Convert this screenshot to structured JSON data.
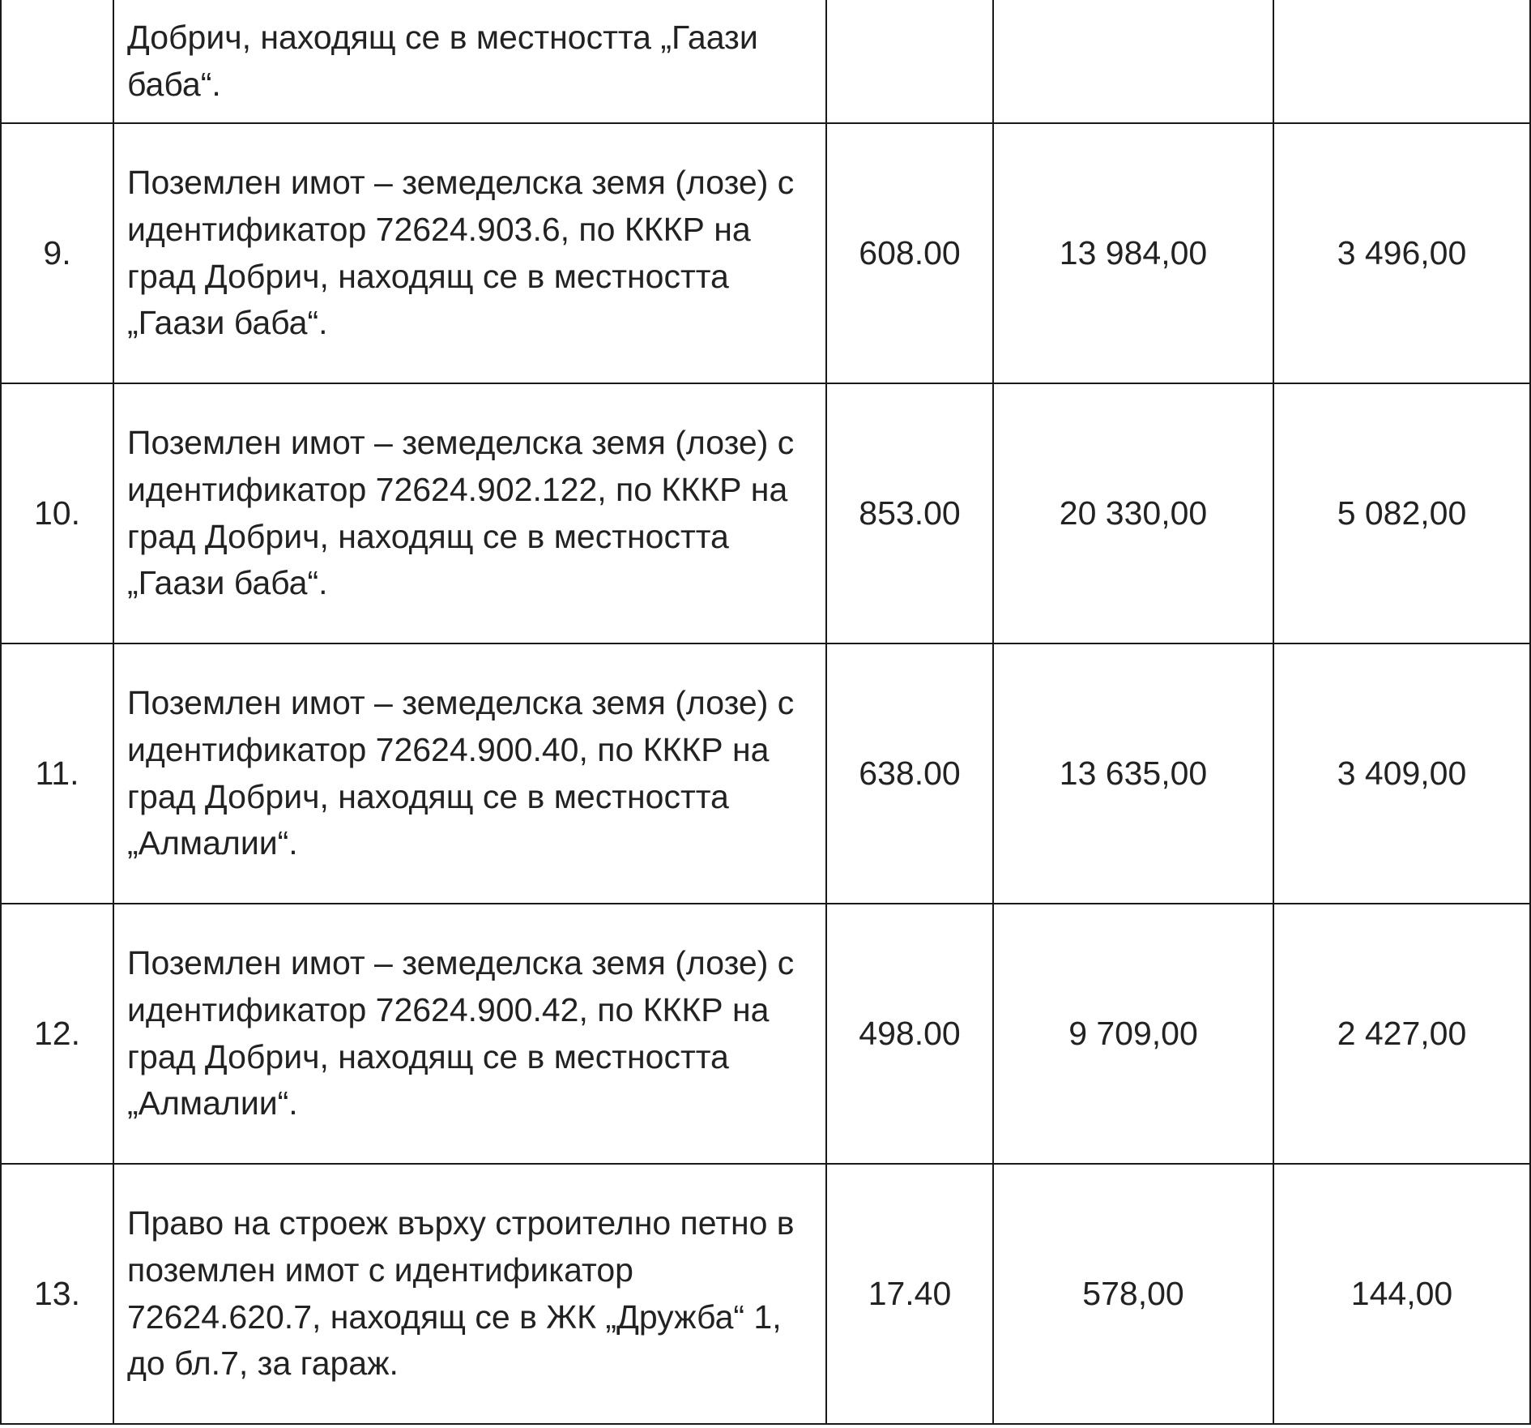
{
  "rows": [
    {
      "no": "",
      "desc": "Добрич, находящ се в местността „Гаази баба“.",
      "area": "",
      "value1": "",
      "value2": ""
    },
    {
      "no": "9.",
      "desc": "Поземлен имот – земеделска земя (лозе) с идентификатор 72624.903.6, по КККР на град Добрич, находящ се в местността „Гаази баба“.",
      "area": "608.00",
      "value1": "13 984,00",
      "value2": "3 496,00"
    },
    {
      "no": "10.",
      "desc": "Поземлен имот – земеделска земя (лозе) с идентификатор 72624.902.122, по КККР на град Добрич, находящ се в местността „Гаази баба“.",
      "area": "853.00",
      "value1": "20 330,00",
      "value2": "5 082,00"
    },
    {
      "no": "11.",
      "desc": "Поземлен имот – земеделска земя (лозе) с идентификатор 72624.900.40, по КККР на град Добрич, находящ се в местността „Алмалии“.",
      "area": "638.00",
      "value1": "13 635,00",
      "value2": "3 409,00"
    },
    {
      "no": "12.",
      "desc": "Поземлен имот – земеделска земя (лозе) с идентификатор 72624.900.42, по КККР на град Добрич, находящ се в местността „Алмалии“.",
      "area": "498.00",
      "value1": "9 709,00",
      "value2": "2 427,00"
    },
    {
      "no": "13.",
      "desc": "Право на строеж върху строително петно в поземлен имот с идентификатор 72624.620.7, находящ се в ЖК „Дружба“ 1, до бл.7, за гараж.",
      "area": "17.40",
      "value1": "578,00",
      "value2": "144,00"
    }
  ]
}
